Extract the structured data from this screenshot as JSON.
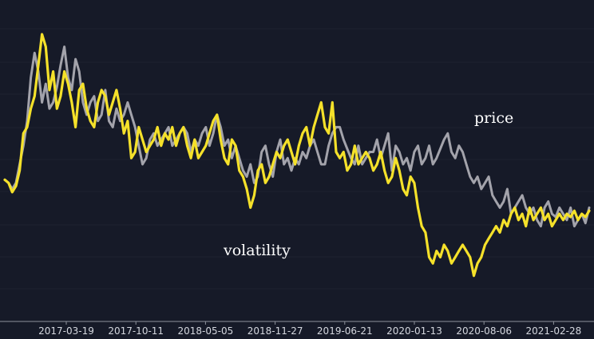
{
  "chart_data": {
    "type": "line",
    "title": "",
    "xlabel": "",
    "ylabel": "",
    "x_ticks": [
      "2017-03-19",
      "2017-10-11",
      "2018-05-05",
      "2018-11-27",
      "2019-06-21",
      "2020-01-13",
      "2020-08-06",
      "2021-02-28"
    ],
    "ylim": [
      0,
      100
    ],
    "grid": true,
    "legend": "none",
    "annotations": [
      {
        "text": "price",
        "series": "price"
      },
      {
        "text": "volatility",
        "series": "volatility"
      }
    ],
    "colors": {
      "background": "#161a28",
      "price": "#a3a3ab",
      "volatility": "#f5e12a",
      "grid": "#2a2f3e",
      "axis": "#8e929c"
    },
    "series": [
      {
        "name": "price",
        "color": "#a3a3ab",
        "values": [
          45,
          44,
          42,
          44,
          50,
          56,
          64,
          78,
          86,
          80,
          70,
          76,
          68,
          70,
          75,
          82,
          88,
          78,
          74,
          84,
          80,
          70,
          66,
          70,
          72,
          64,
          66,
          74,
          64,
          62,
          68,
          64,
          66,
          70,
          66,
          62,
          56,
          50,
          52,
          58,
          60,
          56,
          58,
          60,
          62,
          56,
          58,
          60,
          62,
          60,
          54,
          58,
          56,
          60,
          62,
          56,
          60,
          66,
          62,
          56,
          58,
          52,
          56,
          52,
          48,
          46,
          50,
          44,
          46,
          54,
          56,
          50,
          46,
          54,
          58,
          50,
          52,
          48,
          52,
          50,
          54,
          52,
          56,
          58,
          54,
          50,
          50,
          56,
          60,
          62,
          62,
          58,
          55,
          52,
          50,
          56,
          50,
          52,
          54,
          54,
          58,
          52,
          56,
          60,
          48,
          56,
          54,
          50,
          52,
          48,
          54,
          56,
          50,
          52,
          56,
          50,
          52,
          55,
          58,
          60,
          54,
          52,
          56,
          54,
          50,
          46,
          44,
          46,
          42,
          44,
          46,
          40,
          38,
          36,
          38,
          42,
          34,
          36,
          38,
          40,
          36,
          34,
          36,
          32,
          30,
          36,
          38,
          34,
          33,
          36,
          34,
          32,
          36,
          30,
          32,
          34,
          31,
          36
        ]
      },
      {
        "name": "volatility",
        "color": "#f5e12a",
        "values": [
          45,
          44,
          41,
          43,
          48,
          60,
          62,
          68,
          72,
          82,
          92,
          88,
          74,
          80,
          68,
          72,
          80,
          76,
          70,
          62,
          74,
          76,
          68,
          64,
          62,
          70,
          74,
          72,
          66,
          70,
          74,
          68,
          60,
          64,
          52,
          54,
          62,
          58,
          54,
          56,
          58,
          62,
          56,
          60,
          58,
          62,
          56,
          60,
          62,
          56,
          52,
          58,
          52,
          54,
          56,
          60,
          64,
          66,
          58,
          52,
          50,
          58,
          56,
          48,
          46,
          42,
          36,
          40,
          48,
          50,
          44,
          46,
          50,
          54,
          52,
          56,
          58,
          54,
          50,
          56,
          60,
          62,
          56,
          62,
          66,
          70,
          62,
          60,
          70,
          54,
          52,
          54,
          48,
          50,
          56,
          50,
          52,
          54,
          52,
          48,
          50,
          54,
          48,
          44,
          46,
          52,
          48,
          42,
          40,
          46,
          44,
          36,
          30,
          28,
          20,
          18,
          22,
          20,
          24,
          22,
          18,
          20,
          22,
          24,
          22,
          20,
          14,
          18,
          20,
          24,
          26,
          28,
          30,
          28,
          32,
          30,
          34,
          36,
          32,
          34,
          30,
          36,
          32,
          34,
          36,
          32,
          34,
          30,
          32,
          34,
          32,
          34,
          33,
          35,
          32,
          34,
          33,
          35
        ]
      }
    ]
  }
}
